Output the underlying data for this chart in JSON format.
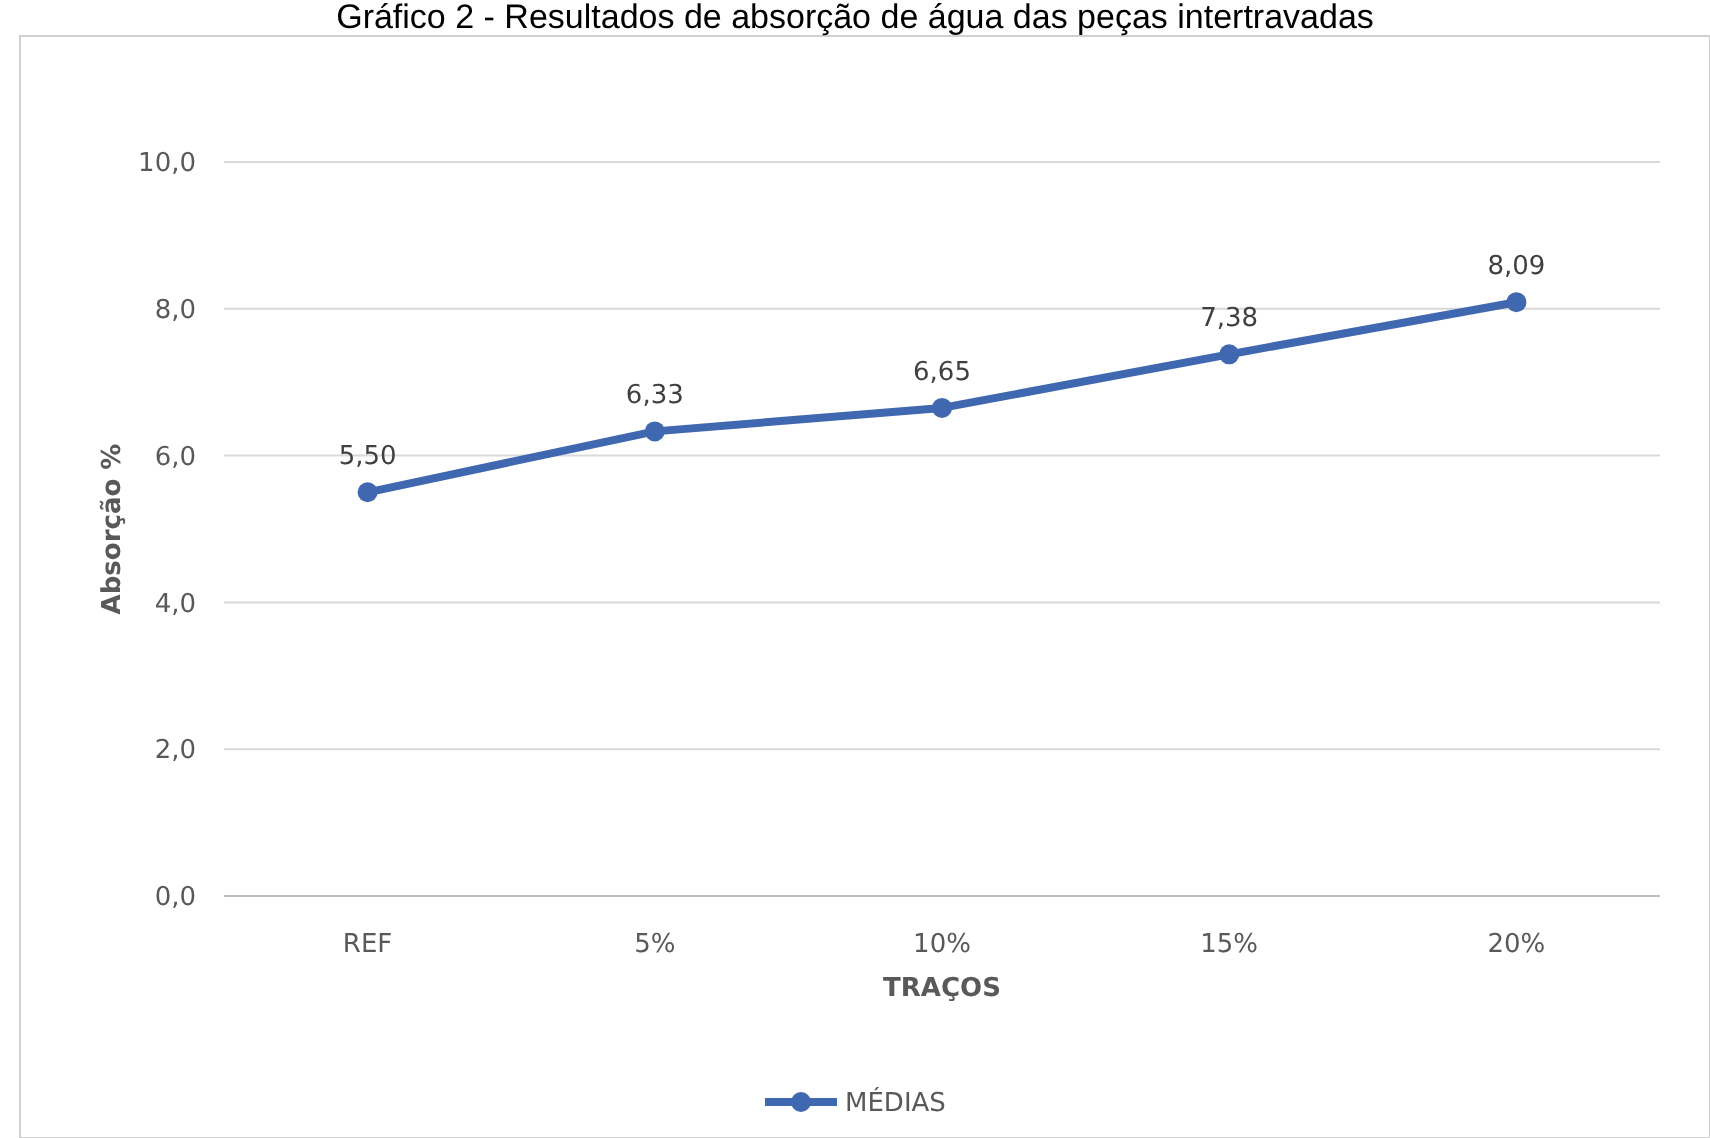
{
  "chart_data": {
    "type": "line",
    "title": "Gráfico 2 - Resultados de absorção de água das peças intertravadas",
    "xlabel": "TRAÇOS",
    "ylabel": "Absorção %",
    "categories": [
      "REF",
      "5%",
      "10%",
      "15%",
      "20%"
    ],
    "series": [
      {
        "name": "MÉDIAS",
        "color": "#4068b0",
        "values": [
          5.5,
          6.33,
          6.65,
          7.38,
          8.09
        ],
        "value_labels": [
          "5,50",
          "6,33",
          "6,65",
          "7,38",
          "8,09"
        ]
      }
    ],
    "ylim": [
      0,
      10
    ],
    "yticks": [
      {
        "value": 0,
        "label": "0,0"
      },
      {
        "value": 2,
        "label": "2,0"
      },
      {
        "value": 4,
        "label": "4,0"
      },
      {
        "value": 6,
        "label": "6,0"
      },
      {
        "value": 8,
        "label": "8,0"
      },
      {
        "value": 10,
        "label": "10,0"
      }
    ],
    "grid": "y",
    "legend": "bottom",
    "marker": "circle",
    "line_style": "solid"
  }
}
